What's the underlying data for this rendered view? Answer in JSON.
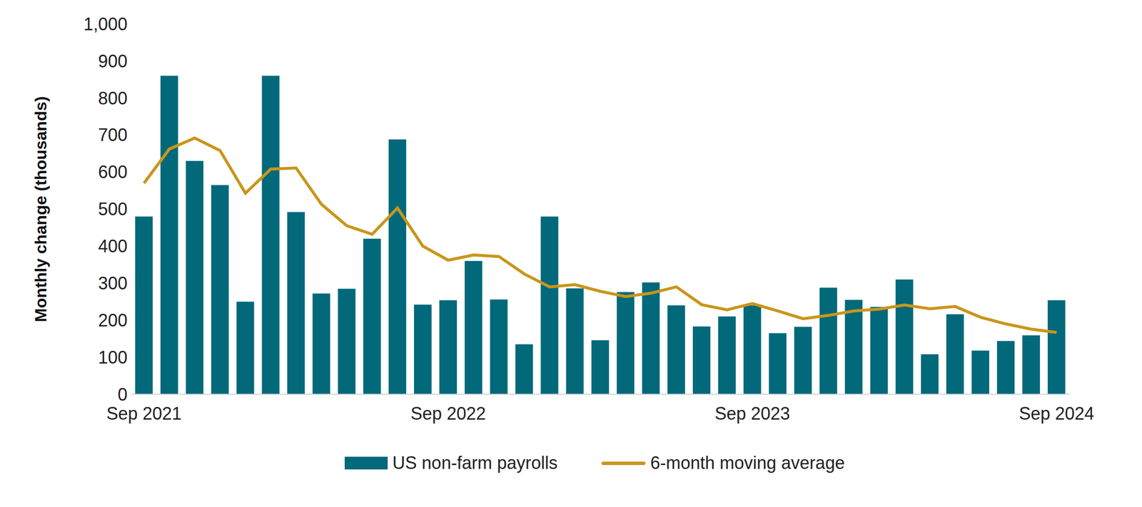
{
  "chart_data": {
    "type": "bar",
    "y_label": "Monthly change (thousands)",
    "categories": [
      "Sep 2021",
      null,
      null,
      null,
      null,
      null,
      null,
      null,
      null,
      null,
      null,
      null,
      "Sep 2022",
      null,
      null,
      null,
      null,
      null,
      null,
      null,
      null,
      null,
      null,
      null,
      "Sep 2023",
      null,
      null,
      null,
      null,
      null,
      null,
      null,
      null,
      null,
      null,
      null,
      "Sep 2024"
    ],
    "series": [
      {
        "name": "US non-farm payrolls",
        "type": "bar",
        "color": "#02697a",
        "values": [
          480,
          860,
          630,
          565,
          250,
          860,
          492,
          272,
          285,
          420,
          688,
          242,
          254,
          360,
          256,
          135,
          480,
          286,
          146,
          276,
          302,
          240,
          183,
          210,
          240,
          165,
          182,
          288,
          255,
          236,
          310,
          108,
          216,
          118,
          144,
          159,
          254
        ]
      },
      {
        "name": "6-month moving average",
        "type": "line",
        "color": "#c9961a",
        "values": [
          570,
          662,
          692,
          658,
          543,
          608,
          611,
          513,
          455,
          432,
          503,
          400,
          362,
          376,
          372,
          325,
          290,
          296,
          278,
          264,
          273,
          290,
          242,
          228,
          245,
          225,
          204,
          213,
          225,
          230,
          241,
          231,
          237,
          208,
          190,
          176,
          167
        ]
      }
    ],
    "ylim": [
      0,
      1000
    ],
    "yticks": [
      0,
      100,
      200,
      300,
      400,
      500,
      600,
      700,
      800,
      900,
      {
        "value": 1000,
        "label": "1,000"
      }
    ],
    "grid": false,
    "legend": "bottom"
  }
}
